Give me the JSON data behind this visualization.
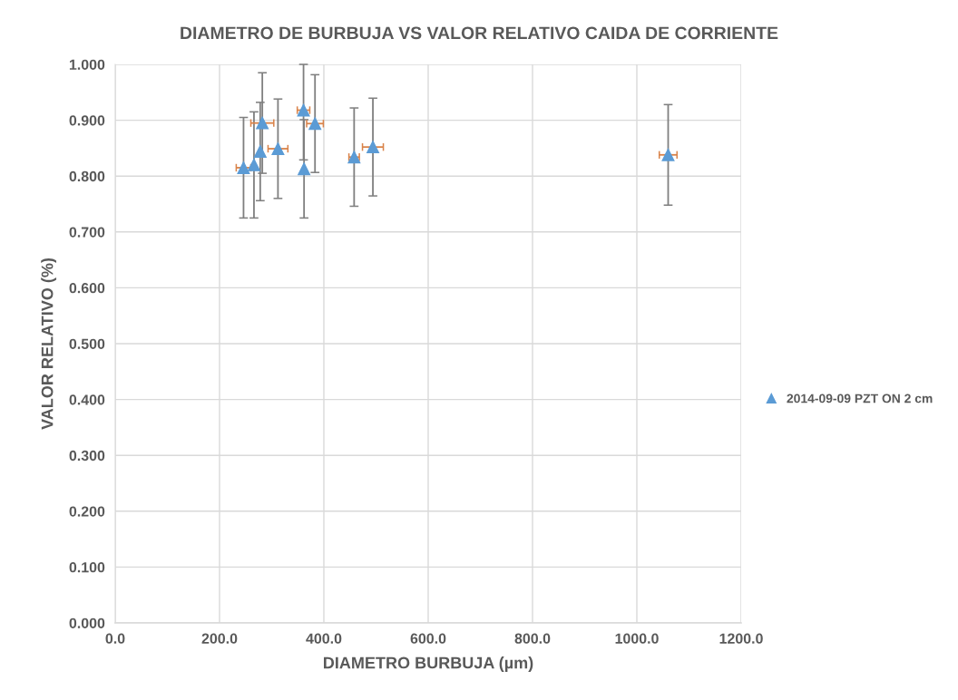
{
  "chart_data": {
    "type": "scatter",
    "title": "DIAMETRO DE BURBUJA VS VALOR RELATIVO CAIDA DE CORRIENTE",
    "xlabel": "DIAMETRO BURBUJA (µm)",
    "ylabel": "VALOR RELATIVO (%)",
    "x": [
      246,
      266,
      278,
      282,
      312,
      361,
      362,
      383,
      458,
      494,
      1060
    ],
    "series": [
      {
        "name": "2014-09-09 PZT ON 2 cm",
        "color": "#5b9bd5",
        "values": [
          0.815,
          0.82,
          0.844,
          0.895,
          0.849,
          0.918,
          0.813,
          0.894,
          0.834,
          0.852,
          0.838
        ],
        "errors": [
          0.09,
          0.095,
          0.088,
          0.09,
          0.089,
          [
            0.829,
            1.0
          ],
          0.088,
          0.0875,
          0.088,
          0.0875,
          0.09
        ],
        "xerrors": [
          14,
          null,
          null,
          22,
          19,
          12,
          null,
          16,
          10,
          20,
          17
        ]
      }
    ],
    "xlim": [
      0,
      1200
    ],
    "xticks": [
      {
        "value": 0,
        "label": "0.0"
      },
      {
        "value": 200,
        "label": "200.0"
      },
      {
        "value": 400,
        "label": "400.0"
      },
      {
        "value": 600,
        "label": "600.0"
      },
      {
        "value": 800,
        "label": "800.0"
      },
      {
        "value": 1000,
        "label": "1000.0"
      },
      {
        "value": 1200,
        "label": "1200.0"
      }
    ],
    "ylim": [
      0,
      1
    ],
    "yticks": [
      {
        "value": 0,
        "label": "0.000"
      },
      {
        "value": 0.1,
        "label": "0.100"
      },
      {
        "value": 0.2,
        "label": "0.200"
      },
      {
        "value": 0.3,
        "label": "0.300"
      },
      {
        "value": 0.4,
        "label": "0.400"
      },
      {
        "value": 0.5,
        "label": "0.500"
      },
      {
        "value": 0.6,
        "label": "0.600"
      },
      {
        "value": 0.7,
        "label": "0.700"
      },
      {
        "value": 0.8,
        "label": "0.800"
      },
      {
        "value": 0.9,
        "label": "0.900"
      },
      {
        "value": 1.0,
        "label": "1.000"
      }
    ],
    "grid": true,
    "legend": "right",
    "marker": "triangle"
  }
}
